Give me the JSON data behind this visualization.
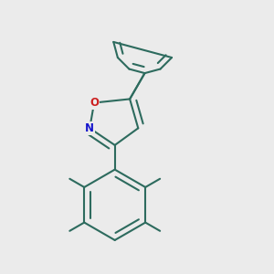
{
  "background_color": "#ebebeb",
  "bond_color": "#2d6b5e",
  "N_color": "#1515cc",
  "O_color": "#cc2020",
  "line_width": 1.5,
  "dbo": 0.022,
  "figsize": [
    3.0,
    3.0
  ],
  "dpi": 100,
  "xlim": [
    0,
    1
  ],
  "ylim": [
    0,
    1
  ]
}
